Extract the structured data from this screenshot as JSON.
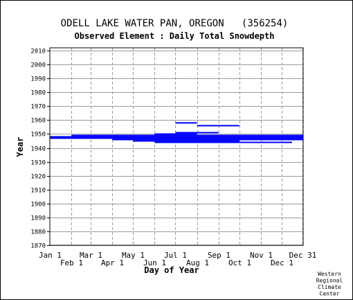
{
  "chart_data": {
    "type": "gantt",
    "title": "ODELL LAKE WATER PAN, OREGON   (356254)",
    "subtitle": "Observed Element : Daily Total Snowdepth",
    "xlabel": "Day of Year",
    "ylabel": "Year",
    "xlim": [
      1,
      366
    ],
    "ylim": [
      1870,
      2012
    ],
    "grid": true,
    "x_ticks": [
      {
        "day": 1,
        "label": "Jan 1",
        "row": 1
      },
      {
        "day": 32,
        "label": "Feb 1",
        "row": 2
      },
      {
        "day": 60,
        "label": "Mar 1",
        "row": 1
      },
      {
        "day": 91,
        "label": "Apr 1",
        "row": 2
      },
      {
        "day": 121,
        "label": "May 1",
        "row": 1
      },
      {
        "day": 152,
        "label": "Jun 1",
        "row": 2
      },
      {
        "day": 182,
        "label": "Jul 1",
        "row": 1
      },
      {
        "day": 213,
        "label": "Aug 1",
        "row": 2
      },
      {
        "day": 244,
        "label": "Sep 1",
        "row": 1
      },
      {
        "day": 274,
        "label": "Oct 1",
        "row": 2
      },
      {
        "day": 305,
        "label": "Nov 1",
        "row": 1
      },
      {
        "day": 335,
        "label": "Dec 1",
        "row": 2
      },
      {
        "day": 365,
        "label": "Dec 31",
        "row": 1
      }
    ],
    "y_ticks": [
      1870,
      1880,
      1890,
      1900,
      1910,
      1920,
      1930,
      1940,
      1950,
      1960,
      1970,
      1980,
      1990,
      2000,
      2010
    ],
    "series_color": "#0000ff",
    "segments": [
      {
        "year": 1958,
        "start": 182,
        "end": 213
      },
      {
        "year": 1956,
        "start": 213,
        "end": 274
      },
      {
        "year": 1951,
        "start": 182,
        "end": 244
      },
      {
        "year": 1950,
        "start": 152,
        "end": 213
      },
      {
        "year": 1949,
        "start": 32,
        "end": 366
      },
      {
        "year": 1948,
        "start": 1,
        "end": 366
      },
      {
        "year": 1947,
        "start": 1,
        "end": 366
      },
      {
        "year": 1946,
        "start": 91,
        "end": 366
      },
      {
        "year": 1945,
        "start": 121,
        "end": 274
      },
      {
        "year": 1944,
        "start": 152,
        "end": 350
      }
    ]
  },
  "footer": {
    "credit_lines": [
      "Western",
      "Regional",
      "Climate",
      "Center"
    ]
  }
}
